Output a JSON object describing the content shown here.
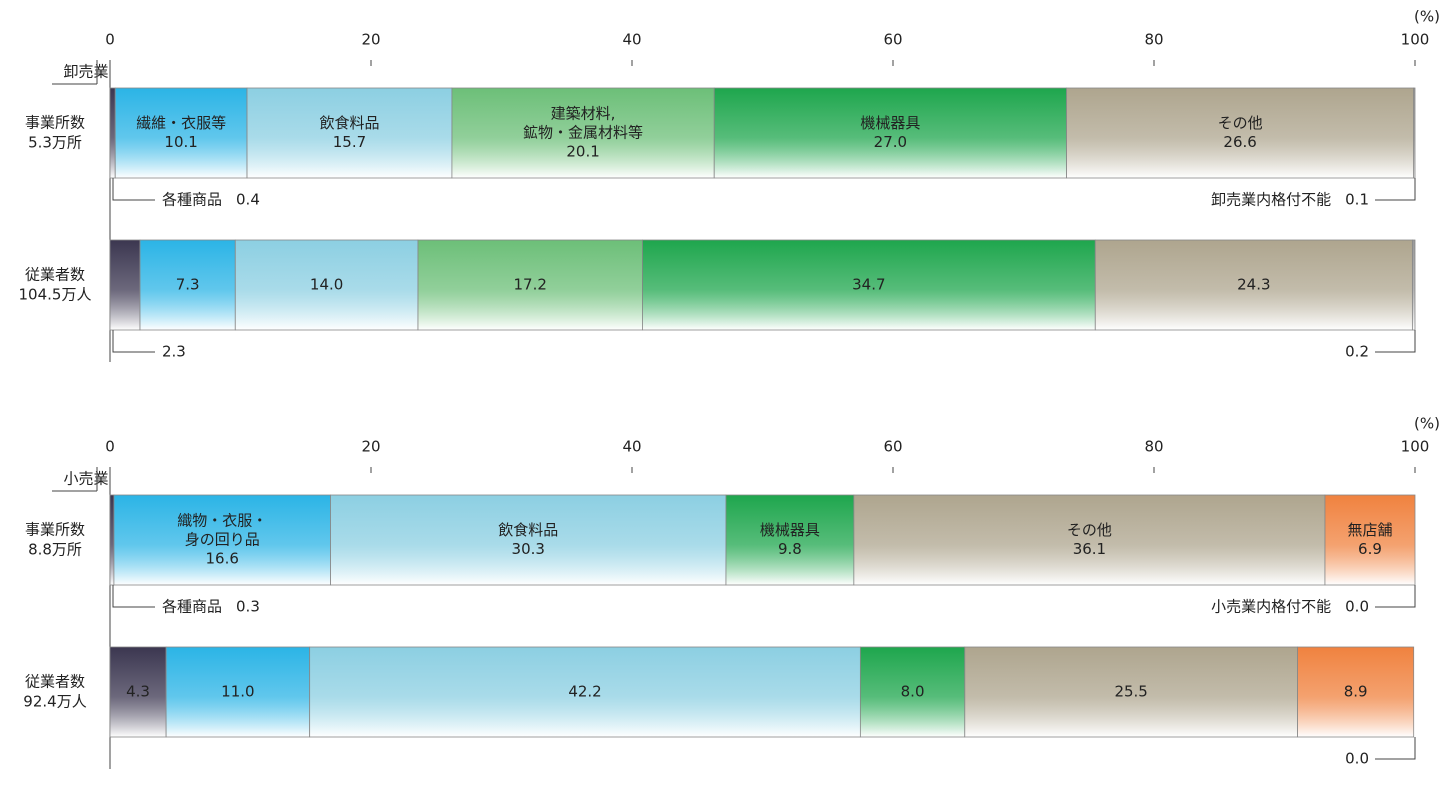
{
  "chart_data": [
    {
      "type": "bar",
      "orientation": "horizontal",
      "stacked": true,
      "section_label": "卸売業",
      "unit_label": "(%)",
      "xlim": [
        0,
        100
      ],
      "xticks": [
        0,
        20,
        40,
        60,
        80,
        100
      ],
      "categories": [
        [
          "事業所数",
          "5.3万所"
        ],
        [
          "従業者数",
          "104.5万人"
        ]
      ],
      "series": [
        {
          "name": [
            "各種商品"
          ],
          "color": "#3b3650",
          "values": [
            0.4,
            2.3
          ],
          "value_labels": [
            "0.4",
            "2.3"
          ]
        },
        {
          "name": [
            "繊維・衣服等"
          ],
          "color": "#2bb4e6",
          "values": [
            10.1,
            7.3
          ],
          "value_labels": [
            "10.1",
            "7.3"
          ]
        },
        {
          "name": [
            "飲食料品"
          ],
          "color": "#8ccfe2",
          "values": [
            15.7,
            14.0
          ],
          "value_labels": [
            "15.7",
            "14.0"
          ]
        },
        {
          "name": [
            "建築材料,",
            "鉱物・金属材料等"
          ],
          "color": "#6cbf78",
          "values": [
            20.1,
            17.2
          ],
          "value_labels": [
            "20.1",
            "17.2"
          ]
        },
        {
          "name": [
            "機械器具"
          ],
          "color": "#1ea64d",
          "values": [
            27.0,
            34.7
          ],
          "value_labels": [
            "27.0",
            "34.7"
          ]
        },
        {
          "name": [
            "その他"
          ],
          "color": "#aea58e",
          "values": [
            26.6,
            24.3
          ],
          "value_labels": [
            "26.6",
            "24.3"
          ]
        },
        {
          "name": [
            "卸売業内格付不能"
          ],
          "color": "#9a9a9a",
          "values": [
            0.1,
            0.2
          ],
          "value_labels": [
            "0.1",
            "0.2"
          ]
        }
      ]
    },
    {
      "type": "bar",
      "orientation": "horizontal",
      "stacked": true,
      "section_label": "小売業",
      "unit_label": "(%)",
      "xlim": [
        0,
        100
      ],
      "xticks": [
        0,
        20,
        40,
        60,
        80,
        100
      ],
      "categories": [
        [
          "事業所数",
          "8.8万所"
        ],
        [
          "従業者数",
          "92.4万人"
        ]
      ],
      "series": [
        {
          "name": [
            "各種商品"
          ],
          "color": "#3b3650",
          "values": [
            0.3,
            4.3
          ],
          "value_labels": [
            "0.3",
            "4.3"
          ]
        },
        {
          "name": [
            "織物・衣服・",
            "身の回り品"
          ],
          "color": "#2bb4e6",
          "values": [
            16.6,
            11.0
          ],
          "value_labels": [
            "16.6",
            "11.0"
          ]
        },
        {
          "name": [
            "飲食料品"
          ],
          "color": "#8ccfe2",
          "values": [
            30.3,
            42.2
          ],
          "value_labels": [
            "30.3",
            "42.2"
          ]
        },
        {
          "name": [
            "機械器具"
          ],
          "color": "#1ea64d",
          "values": [
            9.8,
            8.0
          ],
          "value_labels": [
            "9.8",
            "8.0"
          ]
        },
        {
          "name": [
            "その他"
          ],
          "color": "#aea58e",
          "values": [
            36.1,
            25.5
          ],
          "value_labels": [
            "36.1",
            "25.5"
          ]
        },
        {
          "name": [
            "無店舗"
          ],
          "color": "#f0823f",
          "values": [
            6.9,
            8.9
          ],
          "value_labels": [
            "6.9",
            "8.9"
          ]
        },
        {
          "name": [
            "小売業内格付不能"
          ],
          "color": "#9a9a9a",
          "values": [
            0.0,
            0.0
          ],
          "value_labels": [
            "0.0",
            "0.0"
          ]
        }
      ]
    }
  ]
}
